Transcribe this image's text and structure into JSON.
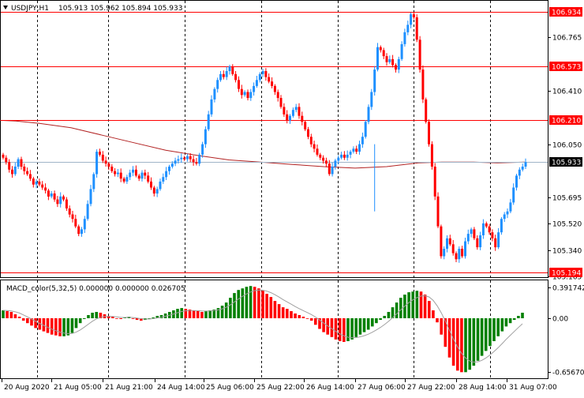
{
  "header": {
    "symbol_label": "USDJPY,H1",
    "ohlc_label": "105.913 105.962 105.894 105.933"
  },
  "macd_header": {
    "label": "MACD_color(5,32,5) 0.000000 0.000000 0.026705"
  },
  "colors": {
    "bull": "#1e90ff",
    "bear": "#ff0000",
    "hist_up": "#008000",
    "hist_down": "#ff0000",
    "level_line": "#ff0000",
    "ma_line": "#b22222",
    "signal_line": "#a0a0a0",
    "grid": "#000000",
    "current_price_line": "#a0b4c8"
  },
  "chart_data": [
    {
      "type": "candlestick",
      "symbol": "USDJPY",
      "timeframe": "H1",
      "ylim": [
        105.165,
        107.0
      ],
      "y_ticks": [
        106.765,
        106.41,
        106.05,
        105.695,
        105.52,
        105.34,
        105.165
      ],
      "x_tick_labels": [
        "20 Aug 2020",
        "21 Aug 05:00",
        "21 Aug 21:00",
        "24 Aug 14:00",
        "25 Aug 06:00",
        "25 Aug 22:00",
        "26 Aug 14:00",
        "27 Aug 06:00",
        "27 Aug 22:00",
        "28 Aug 14:00",
        "31 Aug 07:00"
      ],
      "levels": [
        106.934,
        106.573,
        106.21,
        105.194
      ],
      "current_price": 105.933,
      "moving_average": [
        [
          0,
          106.21
        ],
        [
          20,
          106.205
        ],
        [
          50,
          106.19
        ],
        [
          90,
          106.16
        ],
        [
          130,
          106.11
        ],
        [
          170,
          106.06
        ],
        [
          210,
          106.01
        ],
        [
          250,
          105.975
        ],
        [
          290,
          105.945
        ],
        [
          330,
          105.93
        ],
        [
          370,
          105.915
        ],
        [
          410,
          105.9
        ],
        [
          450,
          105.89
        ],
        [
          490,
          105.9
        ],
        [
          530,
          105.925
        ],
        [
          560,
          105.93
        ],
        [
          600,
          105.93
        ],
        [
          630,
          105.925
        ],
        [
          665,
          105.93
        ]
      ],
      "candle_x_range": [
        4,
        666
      ],
      "closes": [
        105.96,
        105.93,
        105.88,
        105.85,
        105.9,
        105.95,
        105.9,
        105.87,
        105.85,
        105.82,
        105.78,
        105.8,
        105.78,
        105.76,
        105.74,
        105.7,
        105.72,
        105.68,
        105.65,
        105.7,
        105.68,
        105.62,
        105.58,
        105.55,
        105.5,
        105.45,
        105.48,
        105.55,
        105.65,
        105.75,
        105.85,
        106.0,
        105.98,
        105.94,
        105.92,
        105.9,
        105.87,
        105.85,
        105.86,
        105.82,
        105.8,
        105.83,
        105.86,
        105.88,
        105.84,
        105.82,
        105.86,
        105.84,
        105.8,
        105.76,
        105.72,
        105.75,
        105.8,
        105.83,
        105.87,
        105.9,
        105.92,
        105.94,
        105.95,
        105.96,
        105.95,
        105.97,
        105.95,
        105.93,
        105.92,
        105.98,
        106.05,
        106.15,
        106.25,
        106.35,
        106.42,
        106.48,
        106.52,
        106.5,
        106.54,
        106.57,
        106.52,
        106.48,
        106.42,
        106.38,
        106.4,
        106.36,
        106.4,
        106.44,
        106.48,
        106.52,
        106.54,
        106.5,
        106.47,
        106.44,
        106.4,
        106.36,
        106.3,
        106.25,
        106.21,
        106.24,
        106.28,
        106.3,
        106.24,
        106.2,
        106.15,
        106.1,
        106.05,
        106.02,
        105.98,
        105.96,
        105.94,
        105.92,
        105.85,
        105.9,
        105.94,
        105.96,
        105.98,
        105.96,
        105.98,
        106.0,
        106.02,
        106.0,
        106.05,
        106.1,
        106.2,
        106.3,
        106.4,
        106.55,
        106.7,
        106.68,
        106.64,
        106.6,
        106.62,
        106.58,
        106.55,
        106.62,
        106.72,
        106.8,
        106.85,
        106.92,
        106.9,
        106.75,
        106.55,
        106.35,
        106.2,
        106.05,
        105.9,
        105.7,
        105.5,
        105.3,
        105.35,
        105.42,
        105.38,
        105.32,
        105.28,
        105.35,
        105.3,
        105.4,
        105.45,
        105.48,
        105.42,
        105.36,
        105.44,
        105.52,
        105.5,
        105.46,
        105.42,
        105.36,
        105.46,
        105.55,
        105.58,
        105.6,
        105.66,
        105.76,
        105.84,
        105.88,
        105.9,
        105.93
      ]
    },
    {
      "type": "histogram",
      "name": "MACD_color(5,32,5)",
      "ylim": [
        -0.656704,
        0.391742
      ],
      "y_ticks": [
        0.391742,
        0.0,
        -0.656704
      ],
      "bar_x_range": [
        4,
        662
      ],
      "values": [
        0.1,
        0.09,
        0.08,
        0.05,
        0.02,
        -0.03,
        -0.06,
        -0.09,
        -0.12,
        -0.14,
        -0.16,
        -0.18,
        -0.2,
        -0.21,
        -0.22,
        -0.22,
        -0.21,
        -0.18,
        -0.12,
        -0.06,
        -0.01,
        0.04,
        0.07,
        0.08,
        0.07,
        0.05,
        0.03,
        0.02,
        0.0,
        -0.01,
        0.01,
        0.02,
        0.0,
        -0.02,
        -0.03,
        -0.02,
        -0.01,
        0.01,
        0.03,
        0.04,
        0.06,
        0.08,
        0.1,
        0.12,
        0.13,
        0.12,
        0.11,
        0.1,
        0.09,
        0.08,
        0.09,
        0.1,
        0.11,
        0.13,
        0.16,
        0.2,
        0.26,
        0.32,
        0.36,
        0.38,
        0.4,
        0.41,
        0.4,
        0.38,
        0.35,
        0.31,
        0.27,
        0.22,
        0.18,
        0.14,
        0.12,
        0.09,
        0.06,
        0.04,
        0.02,
        0.0,
        -0.03,
        -0.08,
        -0.13,
        -0.17,
        -0.2,
        -0.23,
        -0.26,
        -0.28,
        -0.29,
        -0.28,
        -0.26,
        -0.23,
        -0.2,
        -0.17,
        -0.14,
        -0.1,
        -0.06,
        -0.02,
        0.03,
        0.08,
        0.14,
        0.2,
        0.26,
        0.3,
        0.33,
        0.34,
        0.35,
        0.34,
        0.3,
        0.22,
        0.1,
        -0.05,
        -0.2,
        -0.35,
        -0.48,
        -0.58,
        -0.64,
        -0.66,
        -0.66,
        -0.63,
        -0.58,
        -0.52,
        -0.46,
        -0.4,
        -0.34,
        -0.28,
        -0.22,
        -0.16,
        -0.1,
        -0.06,
        -0.02,
        0.03,
        0.07
      ]
    }
  ]
}
